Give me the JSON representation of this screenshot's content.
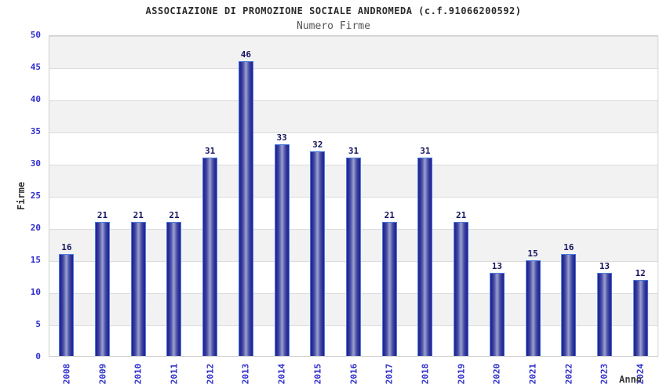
{
  "chart_data": {
    "type": "bar",
    "title": "ASSOCIAZIONE DI PROMOZIONE SOCIALE ANDROMEDA (c.f.91066200592)",
    "subtitle": "Numero Firme",
    "xlabel": "Anno",
    "ylabel": "Firme",
    "categories": [
      "2008",
      "2009",
      "2010",
      "2011",
      "2012",
      "2013",
      "2014",
      "2015",
      "2016",
      "2017",
      "2018",
      "2019",
      "2020",
      "2021",
      "2022",
      "2023",
      "2024"
    ],
    "values": [
      16,
      21,
      21,
      21,
      31,
      46,
      33,
      32,
      31,
      21,
      31,
      21,
      13,
      15,
      16,
      13,
      12
    ],
    "ylim": [
      0,
      50
    ],
    "ytick_step": 5,
    "yticks": [
      0,
      5,
      10,
      15,
      20,
      25,
      30,
      35,
      40,
      45,
      50
    ],
    "grid": "alternating horizontal bands",
    "legend": "none",
    "colors": {
      "bar_edge": "#4a7de0",
      "bar_dark": "#23238c",
      "bar_light": "#9aa2d0",
      "tick_label": "#2e2ecc",
      "value_label": "#14145e",
      "band_gray": "#f2f2f2",
      "band_white": "#ffffff",
      "gridline": "#dcdcdc",
      "title_text": "#2b2b2b",
      "subtitle_text": "#555555"
    }
  }
}
